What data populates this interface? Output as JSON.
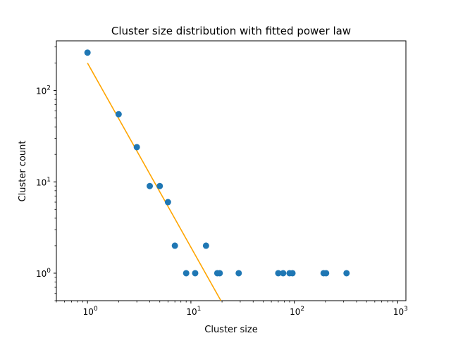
{
  "chart_data": {
    "type": "scatter",
    "title": "Cluster size distribution with fitted power law",
    "xlabel": "Cluster size",
    "ylabel": "Cluster count",
    "xscale": "log",
    "yscale": "log",
    "xlim": [
      0.5,
      1200
    ],
    "ylim": [
      0.5,
      350
    ],
    "grid": false,
    "legend": "none",
    "x_ticks": [
      {
        "value": 1,
        "base": "10",
        "exp": "0"
      },
      {
        "value": 10,
        "base": "10",
        "exp": "1"
      },
      {
        "value": 100,
        "base": "10",
        "exp": "2"
      },
      {
        "value": 1000,
        "base": "10",
        "exp": "3"
      }
    ],
    "y_ticks": [
      {
        "value": 1,
        "base": "10",
        "exp": "0"
      },
      {
        "value": 10,
        "base": "10",
        "exp": "1"
      },
      {
        "value": 100,
        "base": "10",
        "exp": "2"
      }
    ],
    "series": [
      {
        "kind": "scatter",
        "color": "#1f77b4",
        "points": [
          {
            "x": 1,
            "y": 260
          },
          {
            "x": 2,
            "y": 55
          },
          {
            "x": 3,
            "y": 24
          },
          {
            "x": 4,
            "y": 9
          },
          {
            "x": 5,
            "y": 9
          },
          {
            "x": 6,
            "y": 6
          },
          {
            "x": 7,
            "y": 2
          },
          {
            "x": 9,
            "y": 1
          },
          {
            "x": 11,
            "y": 1
          },
          {
            "x": 14,
            "y": 2
          },
          {
            "x": 18,
            "y": 1
          },
          {
            "x": 19,
            "y": 1
          },
          {
            "x": 29,
            "y": 1
          },
          {
            "x": 70,
            "y": 1
          },
          {
            "x": 78,
            "y": 1
          },
          {
            "x": 90,
            "y": 1
          },
          {
            "x": 96,
            "y": 1
          },
          {
            "x": 192,
            "y": 1
          },
          {
            "x": 203,
            "y": 1
          },
          {
            "x": 320,
            "y": 1
          }
        ]
      },
      {
        "kind": "line",
        "color": "#ffa500",
        "points": [
          {
            "x": 1,
            "y": 200
          },
          {
            "x": 19.5,
            "y": 0.5
          }
        ]
      }
    ]
  }
}
